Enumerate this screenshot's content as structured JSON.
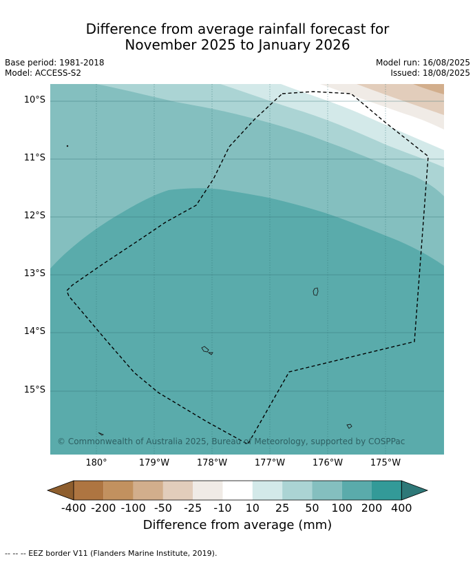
{
  "title": {
    "line1": "Difference from average rainfall forecast for",
    "line2": "November 2025 to January 2026"
  },
  "info_left": {
    "base_period": "Base period: 1981-2018",
    "model": "Model: ACCESS-S2"
  },
  "info_right": {
    "model_run": "Model run: 16/08/2025",
    "issued": "Issued: 18/08/2025"
  },
  "map": {
    "lat_labels": [
      "10°S",
      "11°S",
      "12°S",
      "13°S",
      "14°S",
      "15°S"
    ],
    "lon_labels": [
      "180°",
      "179°W",
      "178°W",
      "177°W",
      "176°W",
      "175°W"
    ],
    "copyright": "© Commonwealth of Australia 2025, Bureau of Meteorology, supported by COSPPac",
    "colors": {
      "band_100_200": "#5aabab",
      "band_50_100": "#84bfbf",
      "band_25_50": "#abd4d4",
      "band_10_25": "#d3e9e9",
      "band_neutral": "#ffffff",
      "band_m10_m25": "#f0ebe6",
      "band_m25_m50": "#e2cdbb",
      "band_m50_m100": "#d2ae8c"
    }
  },
  "colorbar": {
    "labels": [
      "-400",
      "-200",
      "-100",
      "-50",
      "-25",
      "-10",
      "10",
      "25",
      "50",
      "100",
      "200",
      "400"
    ],
    "colors": [
      "#8e5e2e",
      "#ae7541",
      "#c2915f",
      "#d2ae8c",
      "#e2cdbb",
      "#f0ebe6",
      "#ffffff",
      "#d3e9e9",
      "#abd4d4",
      "#84bfbf",
      "#5aabab",
      "#339a98",
      "#2e7878"
    ],
    "title": "Difference from average (mm)"
  },
  "footnote": "--  --  -- EEZ border V11 (Flanders Marine Institute, 2019)."
}
